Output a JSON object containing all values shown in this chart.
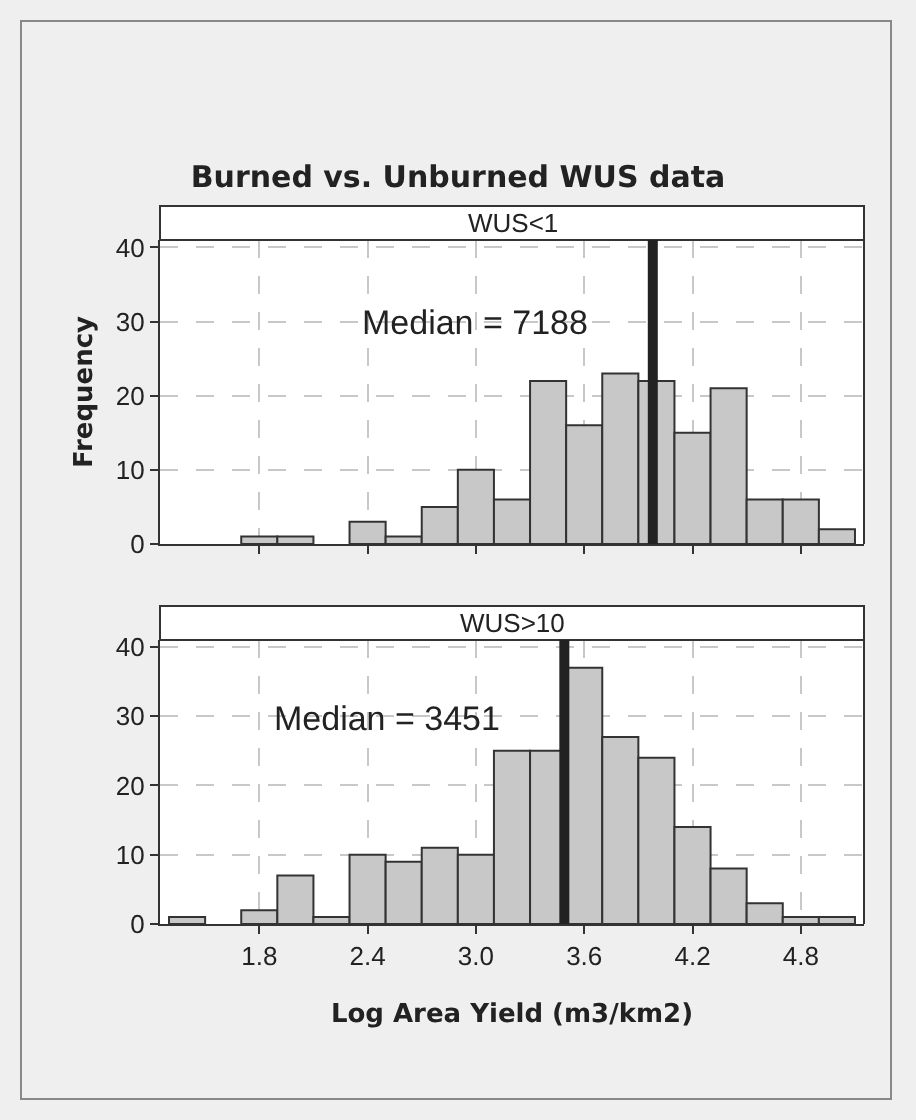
{
  "chart_data": [
    {
      "type": "histogram",
      "title": "Burned vs. Unburned WUS data",
      "subtitle": "WUS<1",
      "ylabel": "Frequency",
      "bins": [
        1.3,
        1.5,
        1.7,
        1.9,
        2.1,
        2.3,
        2.5,
        2.7,
        2.9,
        3.1,
        3.3,
        3.5,
        3.7,
        3.9,
        4.1,
        4.3,
        4.5,
        4.7,
        4.9,
        5.1
      ],
      "values": [
        0,
        0,
        1,
        1,
        0,
        3,
        1,
        5,
        10,
        6,
        22,
        16,
        23,
        22,
        15,
        21,
        6,
        6,
        2
      ],
      "color": "#c8c8c8",
      "xlim": [
        1.25,
        5.15
      ],
      "xticks": [
        1.8,
        2.4,
        3,
        3.6,
        4.2,
        4.8
      ],
      "ylim": [
        0,
        41
      ],
      "yticks": [
        0,
        10,
        20,
        30,
        40
      ],
      "grid": true,
      "tick_labels": "y",
      "ref_lines": [
        {
          "axis": "x",
          "value": 3.98,
          "color": "#222222"
        }
      ],
      "annotations": [
        "Median = 7188"
      ]
    },
    {
      "type": "histogram",
      "subtitle": "WUS>10",
      "xlabel": "Log Area Yield (m3/km2)",
      "bins": [
        1.3,
        1.5,
        1.7,
        1.9,
        2.1,
        2.3,
        2.5,
        2.7,
        2.9,
        3.1,
        3.3,
        3.5,
        3.7,
        3.9,
        4.1,
        4.3,
        4.5,
        4.7,
        4.9,
        5.1
      ],
      "values": [
        1,
        0,
        2,
        7,
        1,
        10,
        9,
        11,
        10,
        25,
        25,
        37,
        27,
        24,
        14,
        8,
        3,
        1,
        1
      ],
      "color": "#c8c8c8",
      "xlim": [
        1.25,
        5.15
      ],
      "xticks": [
        1.8,
        2.4,
        {
          "value": 3,
          "label": "3.0"
        },
        3.6,
        4.2,
        4.8
      ],
      "ylim": [
        0,
        41
      ],
      "yticks": [
        0,
        10,
        20,
        30,
        40
      ],
      "grid": true,
      "ref_lines": [
        {
          "axis": "x",
          "value": 3.49,
          "color": "#222222"
        }
      ],
      "annotations": [
        "Median = 3451"
      ]
    }
  ]
}
